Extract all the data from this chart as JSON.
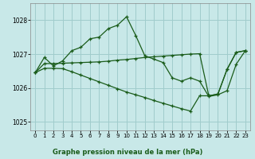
{
  "title": "Graphe pression niveau de la mer (hPa)",
  "background_color": "#c8e8e8",
  "grid_color": "#a0cccc",
  "line_color": "#1a5c1a",
  "xlim": [
    -0.5,
    23.5
  ],
  "ylim": [
    1024.75,
    1028.5
  ],
  "yticks": [
    1025,
    1026,
    1027,
    1028
  ],
  "xticks": [
    0,
    1,
    2,
    3,
    4,
    5,
    6,
    7,
    8,
    9,
    10,
    11,
    12,
    13,
    14,
    15,
    16,
    17,
    18,
    19,
    20,
    21,
    22,
    23
  ],
  "s1": [
    1026.45,
    1026.9,
    1026.65,
    1026.8,
    1027.1,
    1027.2,
    1027.45,
    1027.5,
    1027.75,
    1027.85,
    1028.1,
    1027.55,
    1026.95,
    1026.85,
    1026.75,
    1026.3,
    1026.2,
    1026.3,
    1026.2,
    1025.75,
    1025.8,
    1025.92,
    1026.7,
    1027.1
  ],
  "s2": [
    1026.45,
    1026.72,
    1026.72,
    1026.73,
    1026.74,
    1026.75,
    1026.76,
    1026.77,
    1026.79,
    1026.82,
    1026.84,
    1026.87,
    1026.9,
    1026.92,
    1026.94,
    1026.96,
    1026.98,
    1027.0,
    1027.01,
    1025.77,
    1025.82,
    1026.55,
    1027.05,
    1027.1
  ],
  "s3": [
    1026.45,
    1026.58,
    1026.58,
    1026.57,
    1026.48,
    1026.38,
    1026.28,
    1026.18,
    1026.08,
    1025.98,
    1025.88,
    1025.8,
    1025.72,
    1025.63,
    1025.55,
    1025.47,
    1025.39,
    1025.32,
    1025.77,
    1025.77,
    1025.82,
    1026.55,
    1027.05,
    1027.1
  ]
}
